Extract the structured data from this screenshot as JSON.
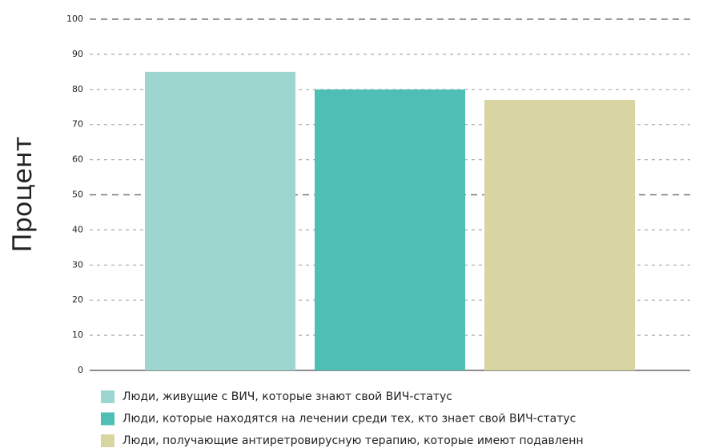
{
  "chart_data": {
    "type": "bar",
    "ylabel": "Процент",
    "series": [
      {
        "name": "Люди, живущие с ВИЧ, которые знают свой ВИЧ-статус",
        "color": "#9dd6cf",
        "values": [
          85
        ]
      },
      {
        "name": "Люди, которые находятся на лечении среди тех, кто знает свой ВИЧ-статус",
        "color": "#4dbfb5",
        "values": [
          80
        ]
      },
      {
        "name": "Люди, получающие антиретровирусную терапию, которые имеют подавленн",
        "color": "#d9d5a3",
        "values": [
          77
        ]
      }
    ],
    "ylim": [
      0,
      100
    ],
    "yticks": [
      0,
      10,
      20,
      30,
      40,
      50,
      60,
      70,
      80,
      90,
      100
    ],
    "grid": true
  }
}
